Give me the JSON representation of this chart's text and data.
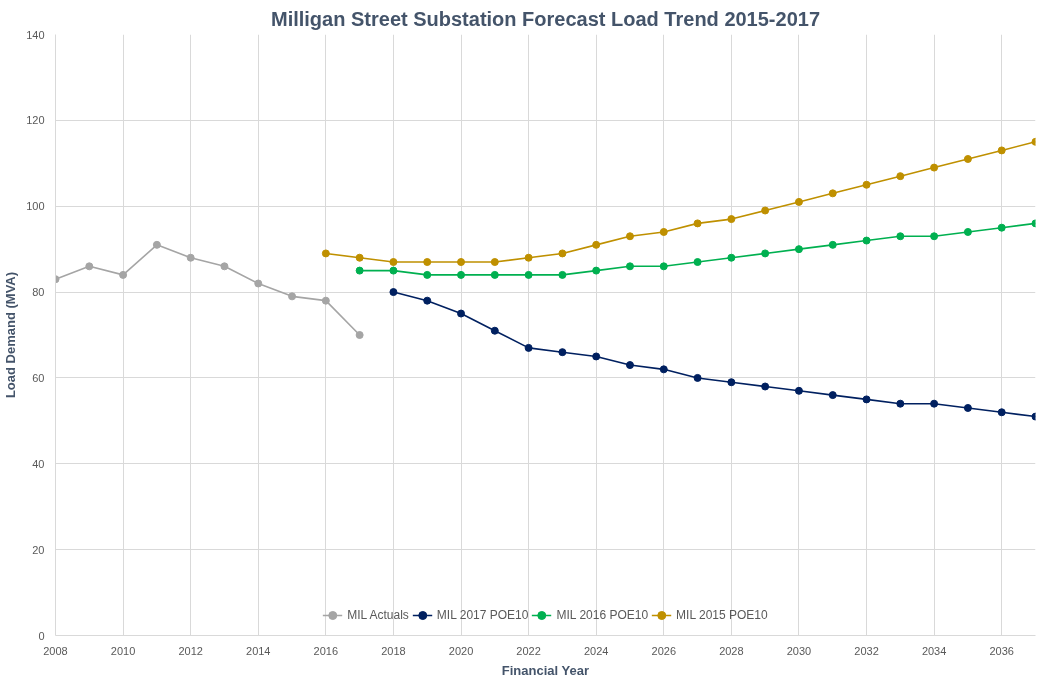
{
  "chart_data": {
    "type": "line",
    "title": "Milligan Street Substation Forecast Load Trend 2015-2017",
    "xlabel": "Financial Year",
    "ylabel": "Load Demand (MVA)",
    "xlim": [
      2008,
      2037
    ],
    "xticks": [
      2008,
      2010,
      2012,
      2014,
      2016,
      2018,
      2020,
      2022,
      2024,
      2026,
      2028,
      2030,
      2032,
      2034,
      2036
    ],
    "ylim": [
      0,
      140
    ],
    "yticks": [
      0,
      20,
      40,
      60,
      80,
      100,
      120,
      140
    ],
    "grid": true,
    "legend": "bottom",
    "marker": "circle",
    "line_style": "solid",
    "series": [
      {
        "name": "MIL Actuals",
        "color": "#a5a5a5",
        "x": [
          2008,
          2009,
          2010,
          2011,
          2012,
          2013,
          2014,
          2015,
          2016,
          2017
        ],
        "values": [
          83,
          86,
          84,
          91,
          88,
          86,
          82,
          79,
          78,
          70
        ]
      },
      {
        "name": "MIL 2017 POE10",
        "color": "#002060",
        "x": [
          2018,
          2019,
          2020,
          2021,
          2022,
          2023,
          2024,
          2025,
          2026,
          2027,
          2028,
          2029,
          2030,
          2031,
          2032,
          2033,
          2034,
          2035,
          2036,
          2037
        ],
        "values": [
          80,
          78,
          75,
          71,
          67,
          66,
          65,
          63,
          62,
          60,
          59,
          58,
          57,
          56,
          55,
          54,
          54,
          53,
          52,
          51
        ]
      },
      {
        "name": "MIL 2016 POE10",
        "color": "#00b050",
        "x": [
          2017,
          2018,
          2019,
          2020,
          2021,
          2022,
          2023,
          2024,
          2025,
          2026,
          2027,
          2028,
          2029,
          2030,
          2031,
          2032,
          2033,
          2034,
          2035,
          2036,
          2037
        ],
        "values": [
          85,
          85,
          84,
          84,
          84,
          84,
          84,
          85,
          86,
          86,
          87,
          88,
          89,
          90,
          91,
          92,
          93,
          93,
          94,
          95,
          96
        ]
      },
      {
        "name": "MIL 2015 POE10",
        "color": "#bf9000",
        "x": [
          2016,
          2017,
          2018,
          2019,
          2020,
          2021,
          2022,
          2023,
          2024,
          2025,
          2026,
          2027,
          2028,
          2029,
          2030,
          2031,
          2032,
          2033,
          2034,
          2035,
          2036,
          2037
        ],
        "values": [
          89,
          88,
          87,
          87,
          87,
          87,
          88,
          89,
          91,
          93,
          94,
          96,
          97,
          99,
          101,
          103,
          105,
          107,
          109,
          111,
          113,
          115
        ]
      }
    ]
  }
}
